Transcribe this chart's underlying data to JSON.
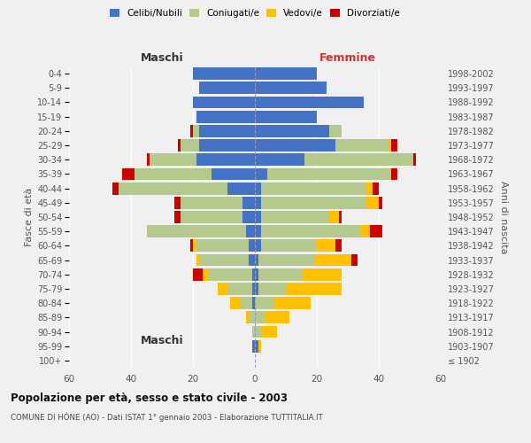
{
  "age_groups": [
    "100+",
    "95-99",
    "90-94",
    "85-89",
    "80-84",
    "75-79",
    "70-74",
    "65-69",
    "60-64",
    "55-59",
    "50-54",
    "45-49",
    "40-44",
    "35-39",
    "30-34",
    "25-29",
    "20-24",
    "15-19",
    "10-14",
    "5-9",
    "0-4"
  ],
  "birth_years": [
    "≤ 1902",
    "1903-1907",
    "1908-1912",
    "1913-1917",
    "1918-1922",
    "1923-1927",
    "1928-1932",
    "1933-1937",
    "1938-1942",
    "1943-1947",
    "1948-1952",
    "1953-1957",
    "1958-1962",
    "1963-1967",
    "1968-1972",
    "1973-1977",
    "1978-1982",
    "1983-1987",
    "1988-1992",
    "1993-1997",
    "1998-2002"
  ],
  "males": {
    "celibe": [
      0,
      1,
      0,
      0,
      1,
      1,
      1,
      2,
      2,
      3,
      4,
      4,
      9,
      14,
      19,
      18,
      18,
      19,
      20,
      18,
      20
    ],
    "coniugato": [
      0,
      0,
      1,
      2,
      4,
      8,
      14,
      16,
      17,
      32,
      20,
      20,
      35,
      25,
      15,
      6,
      2,
      0,
      0,
      0,
      0
    ],
    "vedovo": [
      0,
      0,
      0,
      1,
      3,
      3,
      2,
      1,
      1,
      0,
      0,
      0,
      0,
      0,
      0,
      0,
      0,
      0,
      0,
      0,
      0
    ],
    "divorziato": [
      0,
      0,
      0,
      0,
      0,
      0,
      3,
      0,
      1,
      0,
      2,
      2,
      2,
      4,
      1,
      1,
      1,
      0,
      0,
      0,
      0
    ]
  },
  "females": {
    "nubile": [
      0,
      1,
      0,
      0,
      0,
      1,
      1,
      1,
      2,
      2,
      2,
      2,
      2,
      4,
      16,
      26,
      24,
      20,
      35,
      23,
      20
    ],
    "coniugata": [
      0,
      0,
      2,
      3,
      6,
      9,
      14,
      18,
      18,
      32,
      22,
      34,
      34,
      40,
      35,
      17,
      4,
      0,
      0,
      0,
      0
    ],
    "vedova": [
      0,
      1,
      5,
      8,
      12,
      18,
      13,
      12,
      6,
      3,
      3,
      4,
      2,
      0,
      0,
      1,
      0,
      0,
      0,
      0,
      0
    ],
    "divorziata": [
      0,
      0,
      0,
      0,
      0,
      0,
      0,
      2,
      2,
      4,
      1,
      1,
      2,
      2,
      1,
      2,
      0,
      0,
      0,
      0,
      0
    ]
  },
  "colors": {
    "celibe": "#4472c4",
    "coniugato": "#b5c98e",
    "vedovo": "#ffc000",
    "divorziato": "#cc0000"
  },
  "xlim": 60,
  "title": "Popolazione per età, sesso e stato civile - 2003",
  "subtitle": "COMUNE DI HÔNE (AO) - Dati ISTAT 1° gennaio 2003 - Elaborazione TUTTITALIA.IT",
  "ylabel_left": "Fasce di età",
  "ylabel_right": "Anni di nascita",
  "header_maschi": "Maschi",
  "header_femmine": "Femmine",
  "legend_labels": [
    "Celibi/Nubili",
    "Coniugati/e",
    "Vedovi/e",
    "Divorziati/e"
  ],
  "background_color": "#f0f0f0",
  "bar_height": 0.85
}
